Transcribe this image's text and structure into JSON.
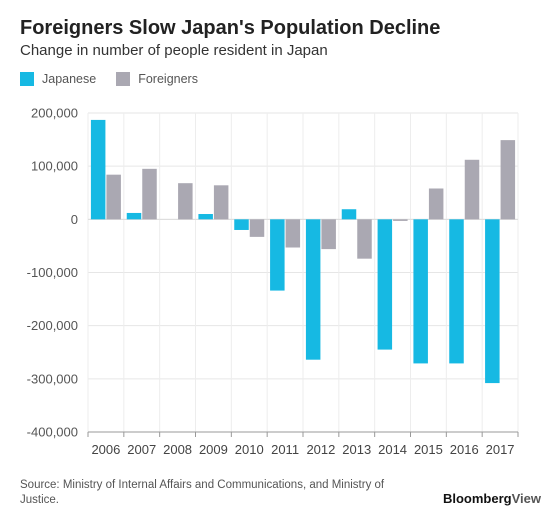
{
  "title": "Foreigners Slow Japan's Population Decline",
  "subtitle": "Change in number of people resident in Japan",
  "source": "Source: Ministry of Internal Affairs and Communications, and Ministry of Justice.",
  "brand": {
    "main": "Bloomberg",
    "suffix": "View"
  },
  "colors": {
    "japanese": "#16b9e3",
    "foreigners": "#aaa8b2"
  },
  "chart_data": {
    "type": "bar",
    "title": "Foreigners Slow Japan's Population Decline",
    "subtitle": "Change in number of people resident in Japan",
    "xlabel": "",
    "ylabel": "",
    "categories": [
      "2006",
      "2007",
      "2008",
      "2009",
      "2010",
      "2011",
      "2012",
      "2013",
      "2014",
      "2015",
      "2016",
      "2017"
    ],
    "series": [
      {
        "name": "Japanese",
        "color": "#16b9e3",
        "values": [
          187000,
          12000,
          0,
          10000,
          -20000,
          -134000,
          -264000,
          19000,
          -245000,
          -271000,
          -271000,
          -308000
        ]
      },
      {
        "name": "Foreigners",
        "color": "#aaa8b2",
        "values": [
          84000,
          95000,
          68000,
          64000,
          -33000,
          -53000,
          -56000,
          -74000,
          -3000,
          58000,
          112000,
          149000
        ]
      }
    ],
    "ylim": [
      -400000,
      200000
    ],
    "yticks": [
      -400000,
      -300000,
      -200000,
      -100000,
      0,
      100000,
      200000
    ],
    "ytick_labels": [
      "-400,000",
      "-300,000",
      "-200,000",
      "-100,000",
      "0",
      "100,000",
      "200,000"
    ],
    "legend_position": "top-left",
    "grid": true
  }
}
